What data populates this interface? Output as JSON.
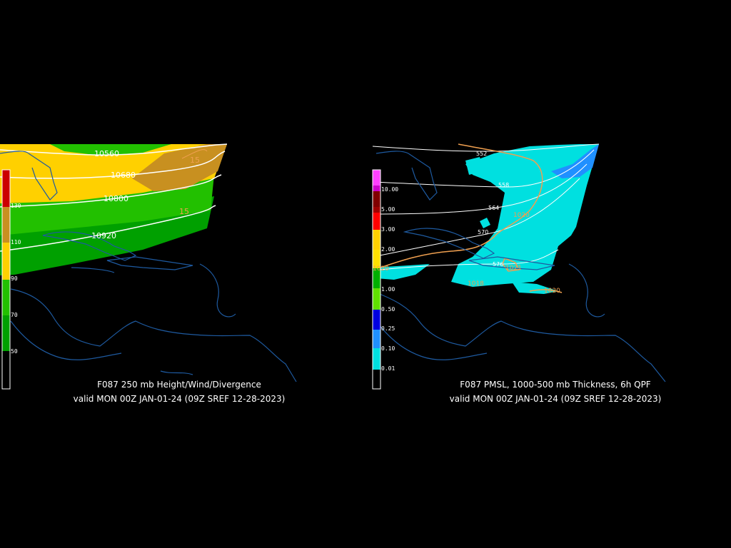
{
  "left_panel": {
    "title": "F087 250 mb Height/Wind/Divergence",
    "valid": "valid MON 00Z JAN-01-24 (09Z SREF 12-28-2023)",
    "colorbar_labels": [
      "130",
      "110",
      "90",
      "70",
      "50"
    ],
    "colorbar_colors": [
      "#000000",
      "#00a000",
      "#22c000",
      "#ffd000",
      "#c89020",
      "#cc0000"
    ],
    "contour_labels": [
      "10560",
      "10680",
      "10800",
      "10920"
    ],
    "divergence_labels": [
      "15",
      "15"
    ],
    "colors": {
      "contour": "#ffffff",
      "divergence": "#f0a050",
      "coast": "#1e5aa0"
    }
  },
  "right_panel": {
    "title": "F087 PMSL, 1000-500 mb Thickness, 6h QPF",
    "valid": "valid MON 00Z JAN-01-24 (09Z SREF 12-28-2023)",
    "colorbar_labels": [
      "10.00",
      "5.00",
      "3.00",
      "2.00",
      "1.00",
      "0.50",
      "0.25",
      "0.10",
      "0.01"
    ],
    "colorbar_colors": [
      "#000000",
      "#00e0e0",
      "#2090ff",
      "#0000e0",
      "#60e000",
      "#00b000",
      "#ffe000",
      "#ffd000",
      "#ff0000",
      "#a00000",
      "#800000",
      "#cc00cc",
      "#ff40ff"
    ],
    "thickness_labels": [
      "552",
      "558",
      "564",
      "570",
      "576"
    ],
    "pressure_labels": [
      "1020",
      "1020",
      "1021",
      "1018",
      "1020"
    ],
    "colors": {
      "thickness": "#ffffff",
      "isobar": "#f0a050",
      "qpf_light": "#00e0e0",
      "qpf_blue": "#2090ff"
    }
  }
}
